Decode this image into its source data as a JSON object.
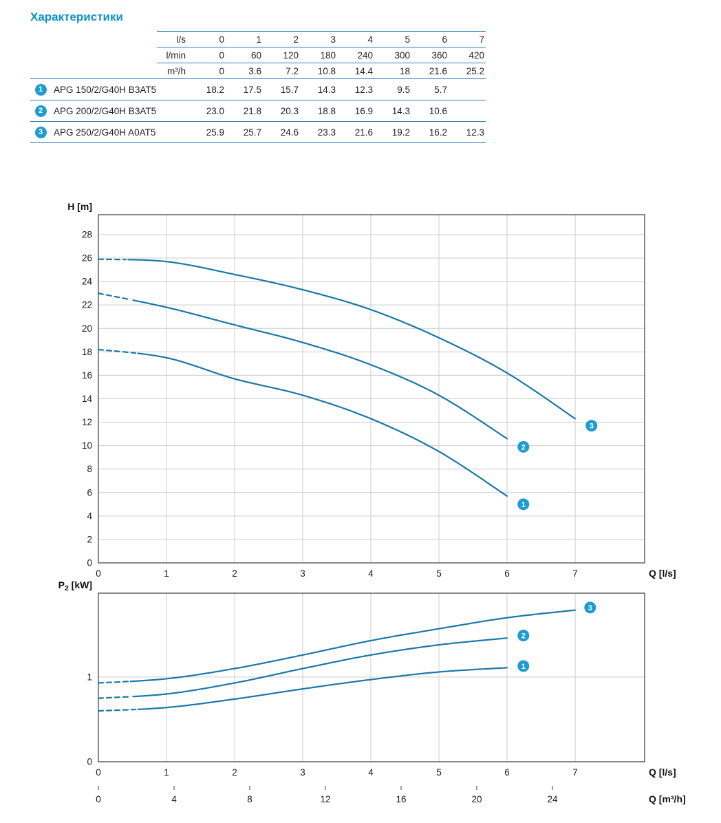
{
  "page": {
    "title": "Характеристики"
  },
  "colors": {
    "accent": "#0e93c5",
    "curve": "#1878a8",
    "marker_fill": "#1e9cd2",
    "grid": "#cccccc",
    "frame": "#3c3c3c",
    "table_line": "#2d7da8",
    "text": "#222222"
  },
  "table": {
    "unit_rows": [
      {
        "unit": "l/s",
        "values": [
          "0",
          "1",
          "2",
          "3",
          "4",
          "5",
          "6",
          "7"
        ]
      },
      {
        "unit": "l/min",
        "values": [
          "0",
          "60",
          "120",
          "180",
          "240",
          "300",
          "360",
          "420"
        ]
      },
      {
        "unit": "m³/h",
        "values": [
          "0",
          "3.6",
          "7.2",
          "10.8",
          "14.4",
          "18",
          "21.6",
          "25.2"
        ]
      }
    ],
    "pump_rows": [
      {
        "marker": "1",
        "model": "APG 150/2/G40H B3AT5",
        "values": [
          "18.2",
          "17.5",
          "15.7",
          "14.3",
          "12.3",
          "9.5",
          "5.7",
          ""
        ]
      },
      {
        "marker": "2",
        "model": "APG 200/2/G40H B3AT5",
        "values": [
          "23.0",
          "21.8",
          "20.3",
          "18.8",
          "16.9",
          "14.3",
          "10.6",
          ""
        ]
      },
      {
        "marker": "3",
        "model": "APG 250/2/G40H A0AT5",
        "values": [
          "25.9",
          "25.7",
          "24.6",
          "23.3",
          "21.6",
          "19.2",
          "16.2",
          "12.3"
        ]
      }
    ]
  },
  "chart_data": [
    {
      "type": "line",
      "title": "Pump head curves",
      "ylabel": "H [m]",
      "xlabel": "Q [l/s]",
      "xlim": [
        0,
        8.02
      ],
      "ylim": [
        0,
        29.7
      ],
      "xticks": [
        0,
        1,
        2,
        3,
        4,
        5,
        6,
        7
      ],
      "yticks": [
        0,
        2,
        4,
        6,
        8,
        10,
        12,
        14,
        16,
        18,
        20,
        22,
        24,
        26,
        28
      ],
      "grid": true,
      "series": [
        {
          "name": "1",
          "x": [
            0,
            1,
            2,
            3,
            4,
            5,
            6
          ],
          "y": [
            18.2,
            17.5,
            15.7,
            14.3,
            12.3,
            9.5,
            5.7
          ],
          "dash_end": 0.55,
          "marker": {
            "x": 6.24,
            "y": 5.0
          }
        },
        {
          "name": "2",
          "x": [
            0,
            1,
            2,
            3,
            4,
            5,
            6
          ],
          "y": [
            23.0,
            21.8,
            20.3,
            18.8,
            16.9,
            14.3,
            10.6
          ],
          "dash_end": 0.5,
          "marker": {
            "x": 6.24,
            "y": 9.9
          }
        },
        {
          "name": "3",
          "x": [
            0,
            1,
            2,
            3,
            4,
            5,
            6,
            7
          ],
          "y": [
            25.9,
            25.7,
            24.6,
            23.3,
            21.6,
            19.2,
            16.2,
            12.3
          ],
          "dash_end": 0.42,
          "marker": {
            "x": 7.24,
            "y": 11.7
          }
        }
      ]
    },
    {
      "type": "line",
      "title": "Pump shaft power curves",
      "ylabel": "P2 [kW]",
      "ylabel_parts": {
        "base": "P",
        "sub": "2",
        "rest": " [kW]"
      },
      "xlabel": "Q [l/s]",
      "xlabel2": "Q [m³/h]",
      "x2_per_x": 3.6,
      "xlim": [
        0,
        8.02
      ],
      "ylim": [
        0,
        1.99
      ],
      "xticks": [
        0,
        1,
        2,
        3,
        4,
        5,
        6,
        7
      ],
      "yticks": [
        0,
        1
      ],
      "xticks2": [
        0,
        4,
        8,
        12,
        16,
        20,
        24
      ],
      "grid": true,
      "series": [
        {
          "name": "1",
          "x": [
            0,
            1,
            2,
            3,
            4,
            5,
            6
          ],
          "y": [
            0.6,
            0.64,
            0.74,
            0.86,
            0.97,
            1.06,
            1.11
          ],
          "dash_end": 0.55,
          "marker": {
            "x": 6.24,
            "y": 1.13
          }
        },
        {
          "name": "2",
          "x": [
            0,
            1,
            2,
            3,
            4,
            5,
            6
          ],
          "y": [
            0.75,
            0.8,
            0.93,
            1.1,
            1.26,
            1.38,
            1.46
          ],
          "dash_end": 0.5,
          "marker": {
            "x": 6.24,
            "y": 1.49
          }
        },
        {
          "name": "3",
          "x": [
            0,
            1,
            2,
            3,
            4,
            5,
            6,
            7
          ],
          "y": [
            0.93,
            0.98,
            1.1,
            1.26,
            1.43,
            1.57,
            1.7,
            1.79
          ],
          "dash_end": 0.45,
          "marker": {
            "x": 7.22,
            "y": 1.82
          }
        }
      ]
    }
  ]
}
